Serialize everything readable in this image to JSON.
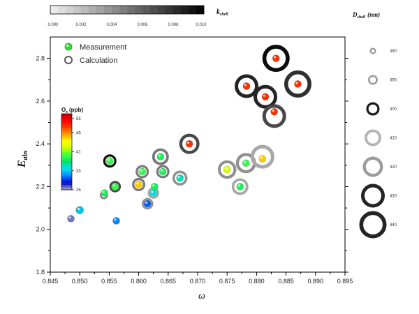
{
  "chart_data": {
    "type": "scatter",
    "xlabel": "ω",
    "ylabel": "E_abs",
    "xlim": [
      0.845,
      0.895
    ],
    "ylim": [
      1.8,
      2.9
    ],
    "xticks": [
      "0.845",
      "0.850",
      "0.855",
      "0.860",
      "0.865",
      "0.870",
      "0.875",
      "0.880",
      "0.885",
      "0.890",
      "0.895"
    ],
    "yticks": [
      "1.8",
      "2.0",
      "2.2",
      "2.4",
      "2.6",
      "2.8"
    ],
    "legend": {
      "measurement_label": "Measurement",
      "calculation_label": "Calculation",
      "placement": "top-left"
    },
    "o3_colorbar": {
      "title_main": "O",
      "title_sub": "x",
      "title_unit": "(ppb)",
      "tick_labels": [
        "55",
        "49",
        "41",
        "33",
        "25"
      ],
      "range": [
        25,
        57
      ],
      "colors": [
        "#b0b0b0",
        "#0000cc",
        "#0080ff",
        "#00e0f0",
        "#00e070",
        "#40ff40",
        "#c0ff00",
        "#ffff00",
        "#ffa000",
        "#ff4000",
        "#ff0000",
        "#c00000"
      ]
    },
    "k_scale": {
      "title_main": "k",
      "title_sub": "shell",
      "tick_labels": [
        "0.000",
        "0.002",
        "0.004",
        "0.006",
        "0.008",
        "0.010"
      ],
      "range": [
        0,
        0.01
      ]
    },
    "dshell_legend": {
      "title_main": "D",
      "title_sub": "shell",
      "title_unit": "(nm)",
      "sizes": [
        "380",
        "390",
        "400",
        "410",
        "420",
        "430",
        "440"
      ],
      "shades": [
        0.004,
        0.0035,
        0.009,
        0.0025,
        0.0035,
        0.0085,
        0.0085
      ]
    },
    "measurement_points": [
      {
        "x": 0.8485,
        "y": 2.05,
        "o3": 26
      },
      {
        "x": 0.85,
        "y": 2.09,
        "o3": 33
      },
      {
        "x": 0.8542,
        "y": 2.17,
        "o3": 38
      },
      {
        "x": 0.8551,
        "y": 2.32,
        "o3": 39
      },
      {
        "x": 0.856,
        "y": 2.2,
        "o3": 39
      },
      {
        "x": 0.8562,
        "y": 2.04,
        "o3": 31
      },
      {
        "x": 0.86,
        "y": 2.21,
        "o3": 47
      },
      {
        "x": 0.8606,
        "y": 2.27,
        "o3": 39
      },
      {
        "x": 0.8615,
        "y": 2.12,
        "o3": 30
      },
      {
        "x": 0.8625,
        "y": 2.17,
        "o3": 34
      },
      {
        "x": 0.8627,
        "y": 2.2,
        "o3": 38
      },
      {
        "x": 0.8637,
        "y": 2.34,
        "o3": 38
      },
      {
        "x": 0.8641,
        "y": 2.27,
        "o3": 38
      },
      {
        "x": 0.867,
        "y": 2.24,
        "o3": 35
      },
      {
        "x": 0.8686,
        "y": 2.4,
        "o3": 52
      },
      {
        "x": 0.875,
        "y": 2.28,
        "o3": 44
      },
      {
        "x": 0.8772,
        "y": 2.2,
        "o3": 38
      },
      {
        "x": 0.8782,
        "y": 2.31,
        "o3": 39
      },
      {
        "x": 0.8783,
        "y": 2.67,
        "o3": 52
      },
      {
        "x": 0.881,
        "y": 2.33,
        "o3": 47
      },
      {
        "x": 0.8815,
        "y": 2.62,
        "o3": 52
      },
      {
        "x": 0.883,
        "y": 2.55,
        "o3": 52
      },
      {
        "x": 0.8833,
        "y": 2.8,
        "o3": 52
      },
      {
        "x": 0.887,
        "y": 2.68,
        "o3": 52
      }
    ],
    "calculation_points": [
      {
        "x": 0.85,
        "y": 2.09,
        "d": 385,
        "k": 0.003
      },
      {
        "x": 0.8541,
        "y": 2.16,
        "d": 385,
        "k": 0.005
      },
      {
        "x": 0.8551,
        "y": 2.32,
        "d": 400,
        "k": 0.0095
      },
      {
        "x": 0.856,
        "y": 2.2,
        "d": 395,
        "k": 0.007
      },
      {
        "x": 0.86,
        "y": 2.21,
        "d": 400,
        "k": 0.005
      },
      {
        "x": 0.8606,
        "y": 2.27,
        "d": 400,
        "k": 0.005
      },
      {
        "x": 0.8615,
        "y": 2.12,
        "d": 395,
        "k": 0.004
      },
      {
        "x": 0.8625,
        "y": 2.17,
        "d": 395,
        "k": 0.003
      },
      {
        "x": 0.8637,
        "y": 2.34,
        "d": 410,
        "k": 0.005
      },
      {
        "x": 0.8641,
        "y": 2.27,
        "d": 400,
        "k": 0.005
      },
      {
        "x": 0.867,
        "y": 2.24,
        "d": 405,
        "k": 0.004
      },
      {
        "x": 0.8686,
        "y": 2.4,
        "d": 420,
        "k": 0.007
      },
      {
        "x": 0.875,
        "y": 2.28,
        "d": 415,
        "k": 0.004
      },
      {
        "x": 0.8772,
        "y": 2.2,
        "d": 410,
        "k": 0.003
      },
      {
        "x": 0.8782,
        "y": 2.31,
        "d": 420,
        "k": 0.004
      },
      {
        "x": 0.8783,
        "y": 2.67,
        "d": 430,
        "k": 0.0085
      },
      {
        "x": 0.881,
        "y": 2.34,
        "d": 430,
        "k": 0.003
      },
      {
        "x": 0.8815,
        "y": 2.62,
        "d": 430,
        "k": 0.0085
      },
      {
        "x": 0.883,
        "y": 2.53,
        "d": 430,
        "k": 0.007
      },
      {
        "x": 0.8833,
        "y": 2.8,
        "d": 440,
        "k": 0.0095
      },
      {
        "x": 0.887,
        "y": 2.68,
        "d": 440,
        "k": 0.008
      }
    ]
  }
}
